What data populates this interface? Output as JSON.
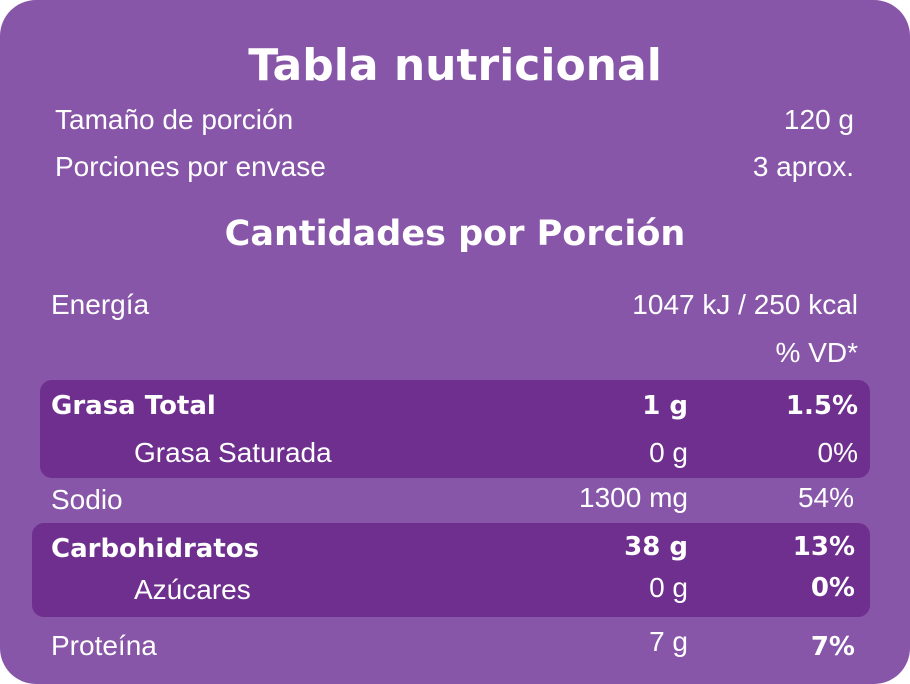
{
  "title": "Tabla nutricional",
  "serving": {
    "size_label": "Tamaño de porción",
    "size_value": "120 g",
    "per_pack_label": "Porciones por envase",
    "per_pack_value": "3 aprox."
  },
  "amounts_title": "Cantidades por Porción",
  "energy": {
    "label": "Energía",
    "value": "1047 kJ / 250 kcal"
  },
  "dv_header": "% VD*",
  "rows": {
    "fat_total": {
      "label": "Grasa Total",
      "amount": "1 g",
      "dv": "1.5%"
    },
    "fat_saturated": {
      "label": "Grasa Saturada",
      "amount": "0 g",
      "dv": "0%"
    },
    "sodium": {
      "label": "Sodio",
      "amount": "1300 mg",
      "dv": "54%"
    },
    "carbs": {
      "label": "Carbohidratos",
      "amount": "38 g",
      "dv": "13%"
    },
    "sugars": {
      "label": "Azúcares",
      "amount": "0 g",
      "dv": "0%"
    },
    "protein": {
      "label": "Proteína",
      "amount": "7 g",
      "dv": "7%"
    }
  },
  "colors": {
    "background": "#8756a8",
    "highlight": "#6e2f8e",
    "text": "#ffffff"
  }
}
